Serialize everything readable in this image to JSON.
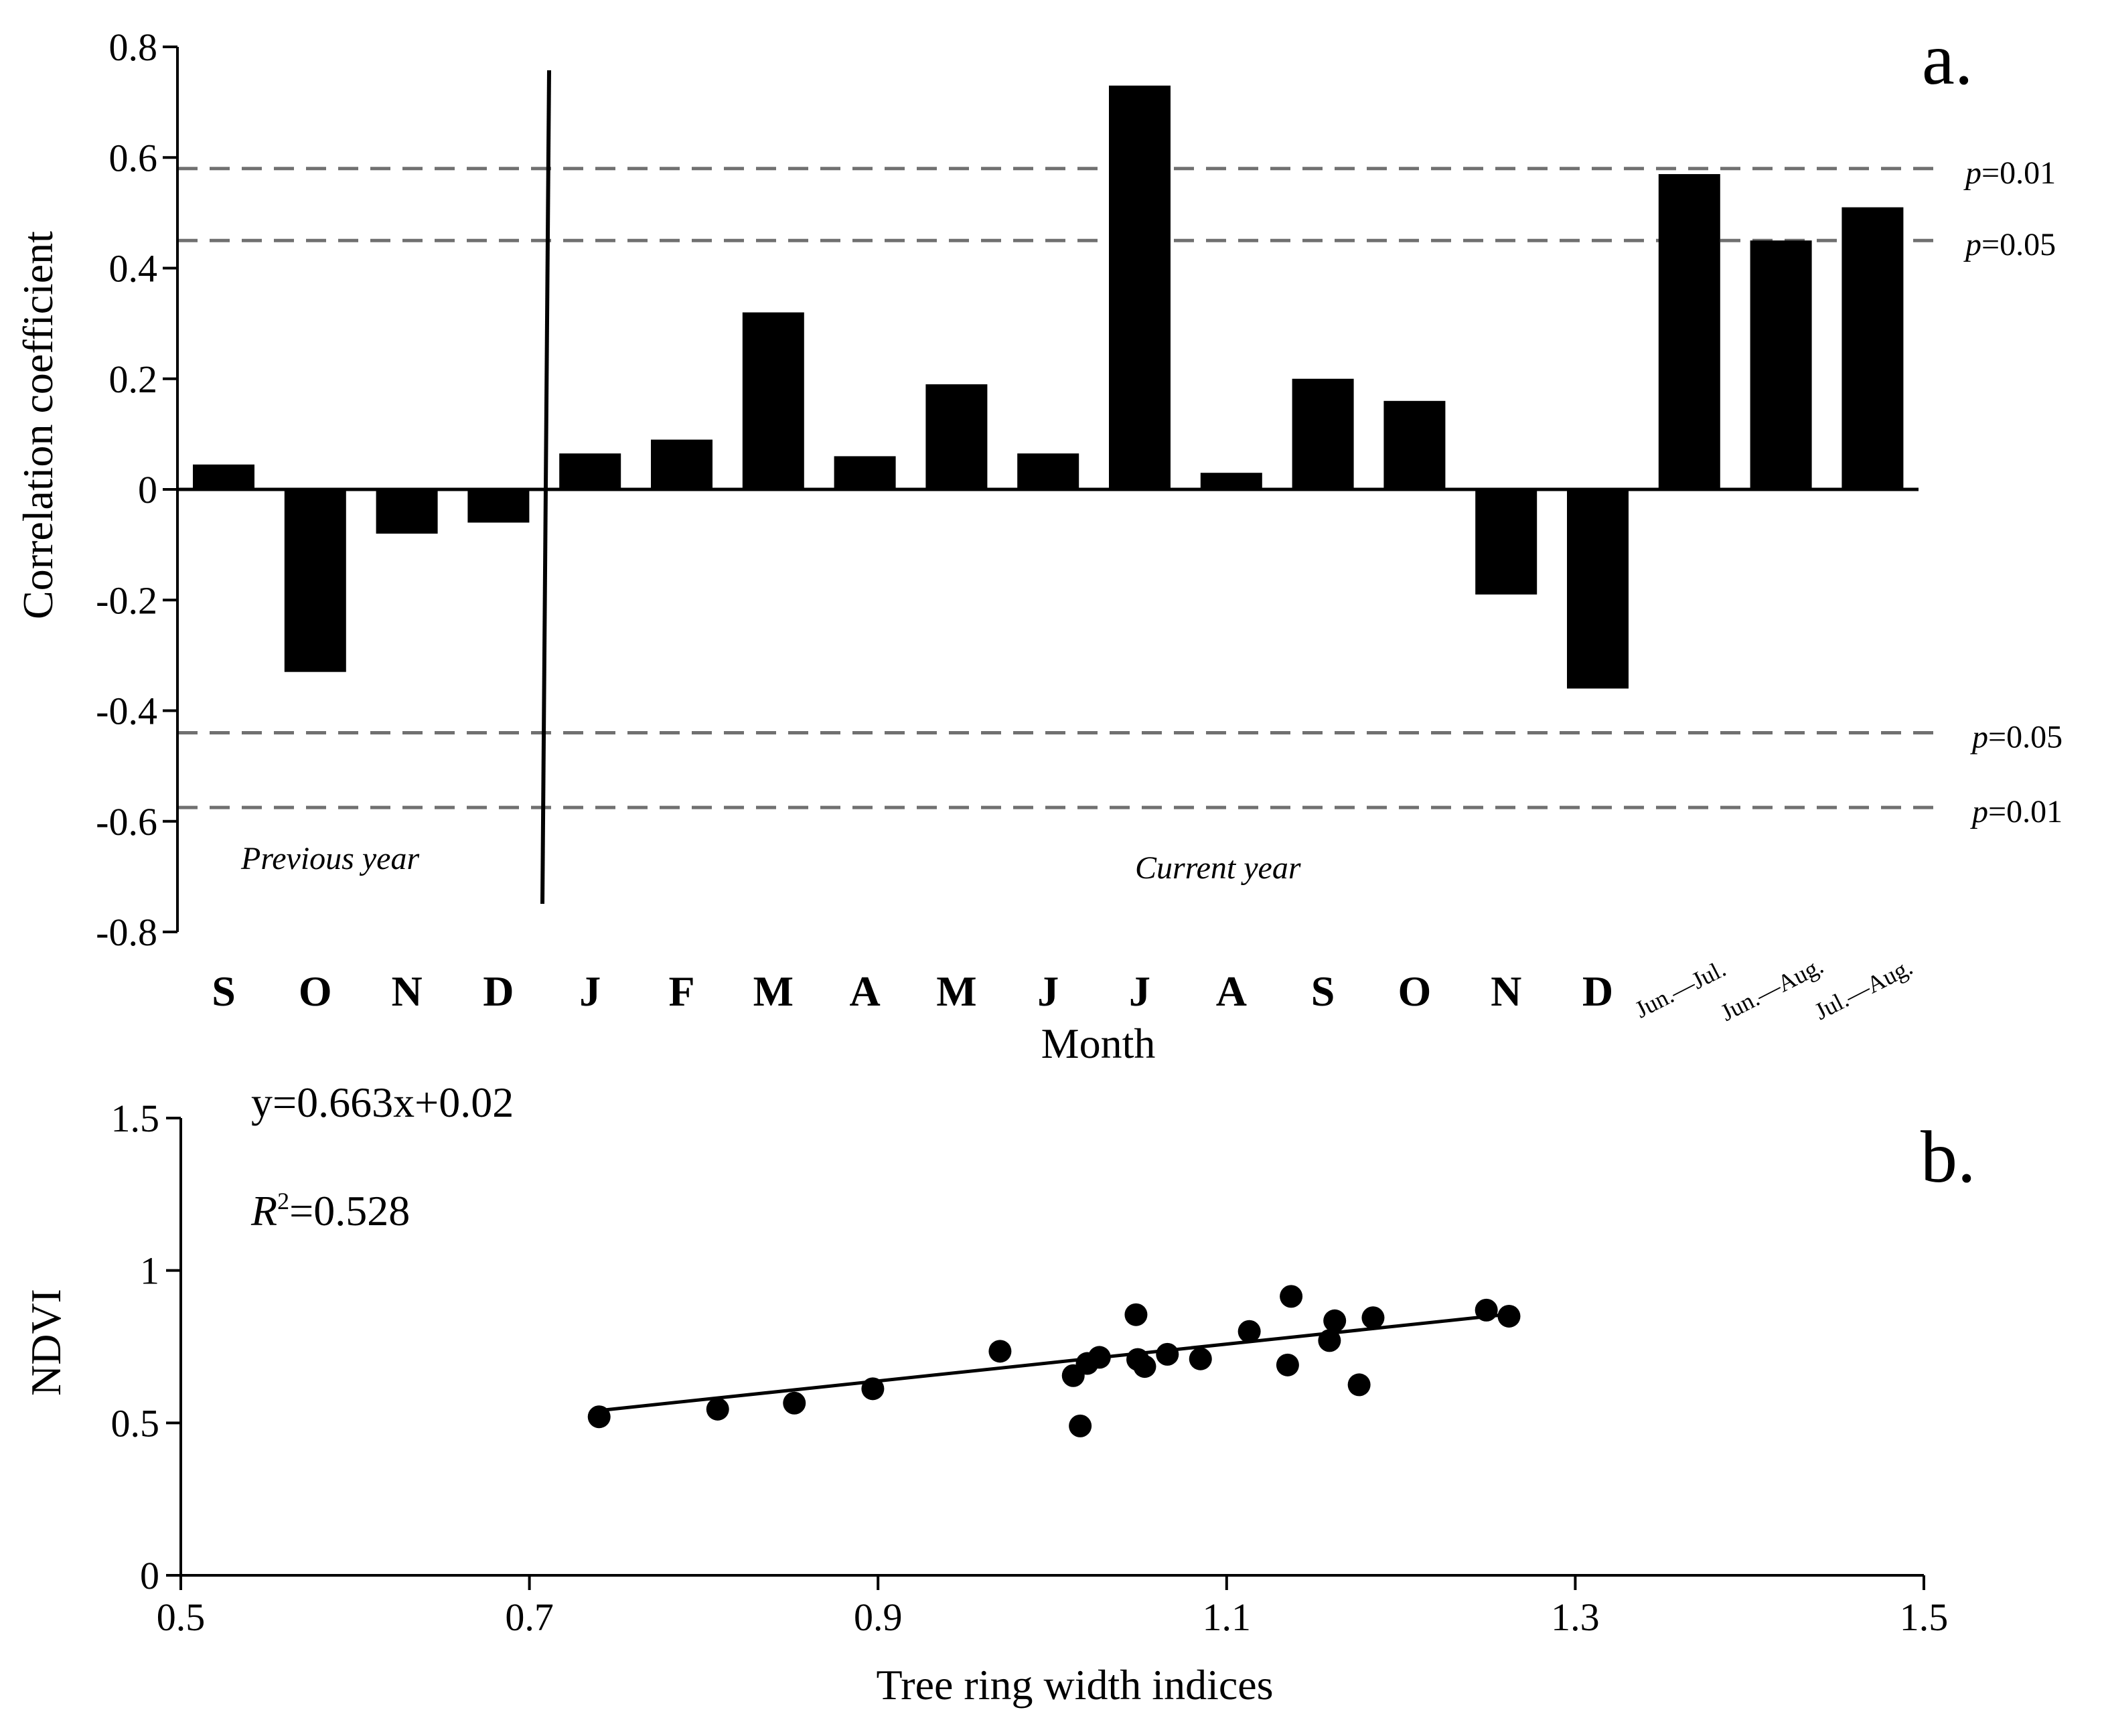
{
  "colors": {
    "bar": "#000000",
    "threshold": "#707070",
    "axis": "#000000"
  },
  "chart_data": [
    {
      "type": "bar",
      "panel_label": "a.",
      "title": "",
      "xlabel": "Month",
      "ylabel": "Correlation coefficient",
      "ylim": [
        -0.8,
        0.8
      ],
      "yticks": [
        "0.8",
        "0.6",
        "0.4",
        "0.2",
        "0",
        "-0.2",
        "-0.4",
        "-0.6",
        "-0.8"
      ],
      "categories": [
        "S",
        "O",
        "N",
        "D",
        "J",
        "F",
        "M",
        "A",
        "M",
        "J",
        "J",
        "A",
        "S",
        "O",
        "N",
        "D",
        "Jun.—Jul.",
        "Jun.—Aug.",
        "Jul.—Aug."
      ],
      "values": [
        0.045,
        -0.33,
        -0.08,
        -0.06,
        0.065,
        0.09,
        0.32,
        0.06,
        0.19,
        0.065,
        0.73,
        0.03,
        0.2,
        0.16,
        -0.19,
        -0.36,
        0.57,
        0.45,
        0.51
      ],
      "period_labels": {
        "previous": "Previous year",
        "current": "Current year"
      },
      "thresholds": [
        {
          "value": 0.58,
          "p": "p",
          "label": "=0.01"
        },
        {
          "value": 0.45,
          "p": "p",
          "label": "=0.05"
        },
        {
          "value": -0.44,
          "p": "p",
          "label": "=0.05"
        },
        {
          "value": -0.575,
          "p": "p",
          "label": "=0.01"
        }
      ]
    },
    {
      "type": "scatter",
      "panel_label": "b.",
      "xlabel": "Tree ring width indices",
      "ylabel": "NDVI",
      "xlim": [
        0.5,
        1.5
      ],
      "ylim": [
        0,
        1.5
      ],
      "xticks": [
        "0.5",
        "0.7",
        "0.9",
        "1.1",
        "1.3",
        "1.5"
      ],
      "yticks": [
        "1.5",
        "1",
        "0.5",
        "0"
      ],
      "equation": "y=0.663x+0.02",
      "r2_symbol": "R",
      "r2_exp": "2",
      "r2_value": "=0.528",
      "fit": {
        "slope": 0.663,
        "intercept": 0.02,
        "x_range": [
          0.74,
          1.26
        ]
      },
      "points": [
        [
          0.74,
          0.52
        ],
        [
          0.808,
          0.545
        ],
        [
          0.852,
          0.565
        ],
        [
          0.897,
          0.612
        ],
        [
          0.97,
          0.735
        ],
        [
          1.012,
          0.655
        ],
        [
          1.016,
          0.49
        ],
        [
          1.02,
          0.695
        ],
        [
          1.027,
          0.715
        ],
        [
          1.048,
          0.855
        ],
        [
          1.049,
          0.708
        ],
        [
          1.053,
          0.685
        ],
        [
          1.066,
          0.725
        ],
        [
          1.085,
          0.71
        ],
        [
          1.113,
          0.8
        ],
        [
          1.135,
          0.69
        ],
        [
          1.137,
          0.915
        ],
        [
          1.159,
          0.77
        ],
        [
          1.162,
          0.835
        ],
        [
          1.176,
          0.625
        ],
        [
          1.184,
          0.845
        ],
        [
          1.249,
          0.87
        ],
        [
          1.262,
          0.85
        ]
      ]
    }
  ]
}
